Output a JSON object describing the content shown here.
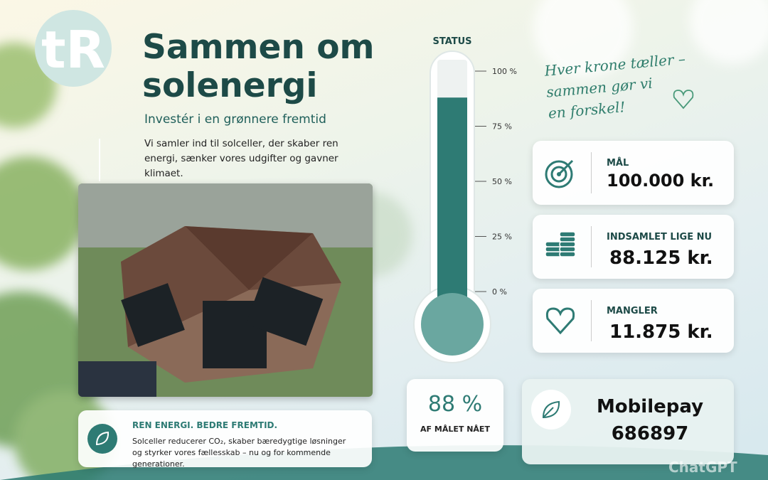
{
  "header": {
    "title_lines": [
      "Sammen om",
      "solenergi"
    ],
    "subtitle": "Investér i en grønnere fremtid",
    "body": "Vi samler ind til solceller, der skaber ren energi, sænker vores udgifter og gavner klimaet."
  },
  "slogan": [
    "Hver krone tæller –",
    "sammen gør vi",
    "en forskel!"
  ],
  "thermometer": {
    "title": "STATUS",
    "ylim": [
      0,
      100
    ],
    "yticks": [
      {
        "value": 0,
        "label": "0 %"
      },
      {
        "value": 25,
        "label": "25 %"
      },
      {
        "value": 50,
        "label": "50 %"
      },
      {
        "value": 75,
        "label": "75 %"
      },
      {
        "value": 100,
        "label": "100 %"
      }
    ],
    "value": 88,
    "value_label": "88 %",
    "caption": "AF MÅLET NÅET",
    "color": "#2e7b74"
  },
  "cards": [
    {
      "label": "MÅL",
      "value": "100.000 kr."
    },
    {
      "label": "INDSAMLET LIGE NU",
      "value": "88.125 kr."
    },
    {
      "label": "MANGLER",
      "value": "11.875 kr."
    }
  ],
  "info_box": {
    "title": "REN ENERGI. BEDRE FREMTID.",
    "text_lines": [
      "Solceller reducerer CO₂, skaber bæredygtige løsninger",
      "og styrker vores fællesskab – nu og for kommende generationer."
    ]
  },
  "payment": {
    "name": "Mobilepay",
    "number": "686897"
  },
  "watermark": "ChatGPT"
}
